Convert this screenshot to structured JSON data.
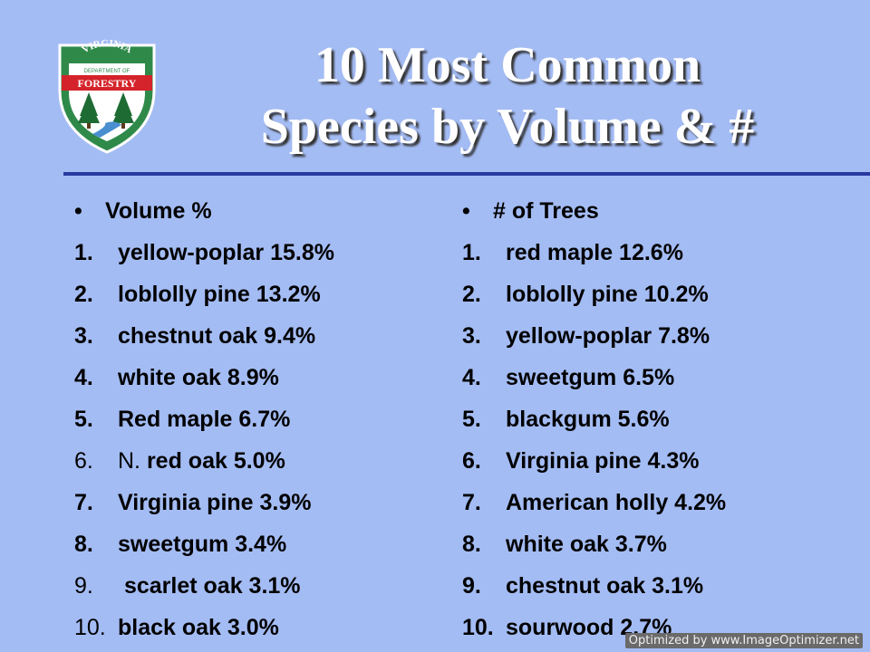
{
  "logo": {
    "top_text": "VIRGINIA",
    "dept_text": "DEPARTMENT OF",
    "forestry_text": "FORESTRY",
    "colors": {
      "shield_green": "#2f8a4a",
      "banner_red": "#d4232a",
      "tree_green": "#1e6b34",
      "water_blue": "#4a8fd0"
    }
  },
  "title": {
    "line1": "10 Most Common",
    "line2": "Species by Volume & #"
  },
  "left": {
    "heading_bullet": "•",
    "heading": "Volume %",
    "items": [
      {
        "num": "1.",
        "pre": "",
        "text": "yellow-poplar 15.8%"
      },
      {
        "num": "2.",
        "pre": "",
        "text": "loblolly pine 13.2%"
      },
      {
        "num": "3.",
        "pre": "",
        "text": "chestnut oak 9.4%"
      },
      {
        "num": "4.",
        "pre": "",
        "text": "white oak 8.9%"
      },
      {
        "num": "5.",
        "pre": "",
        "text": "Red maple 6.7%"
      },
      {
        "num": "6.",
        "pre": "N. ",
        "text": "red oak 5.0%"
      },
      {
        "num": "7.",
        "pre": "",
        "text": "Virginia pine 3.9%"
      },
      {
        "num": "8.",
        "pre": "",
        "text": "sweetgum 3.4%"
      },
      {
        "num": "9.",
        "pre": " ",
        "text": "scarlet oak 3.1%"
      },
      {
        "num": "10.",
        "pre": "",
        "text": "black oak 3.0%"
      }
    ]
  },
  "right": {
    "heading_bullet": "•",
    "heading": "# of Trees",
    "items": [
      {
        "num": "1.",
        "text": "red maple 12.6%"
      },
      {
        "num": "2.",
        "text": "loblolly pine 10.2%"
      },
      {
        "num": "3.",
        "text": "yellow-poplar 7.8%"
      },
      {
        "num": "4.",
        "text": "sweetgum 6.5%"
      },
      {
        "num": "5.",
        "text": "blackgum 5.6%"
      },
      {
        "num": "6.",
        "text": "Virginia pine 4.3%"
      },
      {
        "num": "7.",
        "text": "American holly 4.2%"
      },
      {
        "num": "8.",
        "text": "white oak 3.7%"
      },
      {
        "num": "9.",
        "text": "chestnut oak 3.1%"
      },
      {
        "num": "10.",
        "text": "sourwood 2.7%"
      }
    ]
  },
  "watermark": "Optimized by www.ImageOptimizer.net"
}
